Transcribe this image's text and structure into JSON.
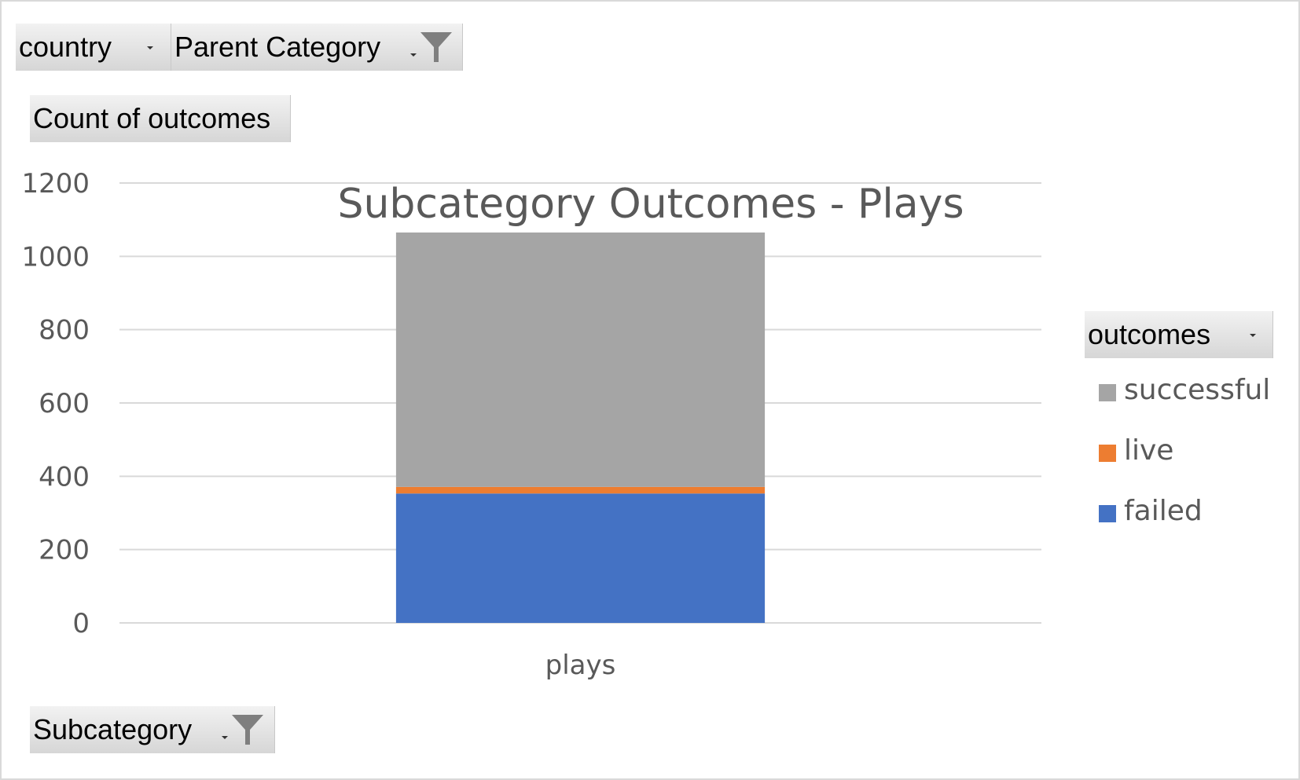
{
  "filters": {
    "country": "country",
    "parent_category": "Parent Category",
    "values_field": "Count of outcomes",
    "axis_field": "Subcategory",
    "legend_field": "outcomes"
  },
  "colors": {
    "successful": "#a5a5a5",
    "live": "#ed7d31",
    "failed": "#4472c4",
    "gridline": "#d9d9d9",
    "text": "#595959"
  },
  "chart_data": {
    "type": "bar",
    "stacked": true,
    "title": "Subcategory Outcomes - Plays",
    "categories": [
      "plays"
    ],
    "series": [
      {
        "name": "failed",
        "values": [
          353
        ]
      },
      {
        "name": "live",
        "values": [
          18
        ]
      },
      {
        "name": "successful",
        "values": [
          694
        ]
      }
    ],
    "ylim": [
      0,
      1200
    ],
    "yticks": [
      "0",
      "200",
      "400",
      "600",
      "800",
      "1000",
      "1200"
    ],
    "grid": true,
    "legend": "right",
    "legend_order": [
      "successful",
      "live",
      "failed"
    ]
  }
}
